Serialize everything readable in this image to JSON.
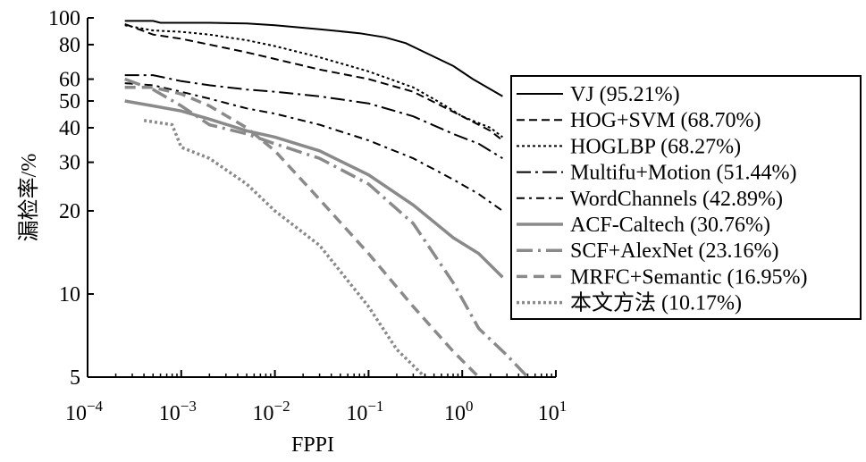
{
  "chart_data": {
    "type": "line",
    "title": "",
    "xlabel": "FPPI",
    "ylabel": "漏检率/%",
    "x_scale": "log",
    "y_scale": "log",
    "xlim": [
      0.0001,
      10
    ],
    "ylim": [
      5,
      100
    ],
    "x_ticks": [
      {
        "value": 0.0001,
        "base": "10",
        "exp": "−4"
      },
      {
        "value": 0.001,
        "base": "10",
        "exp": "−3"
      },
      {
        "value": 0.01,
        "base": "10",
        "exp": "−2"
      },
      {
        "value": 0.1,
        "base": "10",
        "exp": "−1"
      },
      {
        "value": 1,
        "base": "10",
        "exp": "0"
      },
      {
        "value": 10,
        "base": "10",
        "exp": "1"
      }
    ],
    "y_ticks": [
      {
        "value": 5,
        "label": "5"
      },
      {
        "value": 10,
        "label": "10"
      },
      {
        "value": 20,
        "label": "20"
      },
      {
        "value": 30,
        "label": "30"
      },
      {
        "value": 40,
        "label": "40"
      },
      {
        "value": 50,
        "label": "50"
      },
      {
        "value": 60,
        "label": "60"
      },
      {
        "value": 80,
        "label": "80"
      },
      {
        "value": 100,
        "label": "100"
      }
    ],
    "grid": false,
    "legend_position": "right",
    "series": [
      {
        "name": "VJ (95.21%)",
        "color": "#000000",
        "width": 2,
        "dash": "",
        "x": [
          0.00025,
          0.0005,
          0.0006,
          0.001,
          0.002,
          0.005,
          0.01,
          0.03,
          0.08,
          0.15,
          0.25,
          0.4,
          0.8,
          1.3,
          2.7
        ],
        "y": [
          97.5,
          97.5,
          96,
          96,
          96,
          95.5,
          94,
          91,
          88,
          85,
          81,
          75,
          67,
          60,
          52
        ]
      },
      {
        "name": "HOG+SVM (68.70%)",
        "color": "#000000",
        "width": 2,
        "dash": "9,5",
        "x": [
          0.00025,
          0.0005,
          0.001,
          0.002,
          0.005,
          0.01,
          0.03,
          0.1,
          0.3,
          0.6,
          1,
          2,
          2.7
        ],
        "y": [
          95,
          87,
          84,
          80,
          75,
          71,
          65,
          60,
          54,
          48,
          44,
          39,
          36
        ]
      },
      {
        "name": "HOGLBP (68.27%)",
        "color": "#000000",
        "width": 2,
        "dash": "3,3",
        "x": [
          0.00025,
          0.0005,
          0.001,
          0.002,
          0.005,
          0.01,
          0.03,
          0.1,
          0.3,
          0.6,
          1,
          2,
          2.7
        ],
        "y": [
          94,
          90,
          89,
          87,
          83,
          79,
          72,
          64,
          56,
          49,
          44,
          40,
          37
        ]
      },
      {
        "name": "Multifu+Motion (51.44%)",
        "color": "#000000",
        "width": 2,
        "dash": "16,5,3,5",
        "x": [
          0.00025,
          0.0005,
          0.001,
          0.002,
          0.005,
          0.01,
          0.03,
          0.1,
          0.3,
          0.8,
          1.5,
          2.7
        ],
        "y": [
          62,
          62,
          59,
          57,
          55,
          54,
          52,
          49,
          44,
          38,
          35,
          31
        ]
      },
      {
        "name": "WordChannels (42.89%)",
        "color": "#000000",
        "width": 2,
        "dash": "9,5,3,5",
        "x": [
          0.00025,
          0.0005,
          0.001,
          0.002,
          0.005,
          0.01,
          0.03,
          0.1,
          0.3,
          0.8,
          1.5,
          2.7
        ],
        "y": [
          58,
          57,
          54,
          51,
          47,
          45,
          41,
          36,
          31,
          26,
          23,
          20
        ]
      },
      {
        "name": "ACF-Caltech (30.76%)",
        "color": "#8a8a8a",
        "width": 3.5,
        "dash": "",
        "x": [
          0.00025,
          0.0005,
          0.001,
          0.002,
          0.005,
          0.01,
          0.03,
          0.1,
          0.3,
          0.8,
          1.5,
          2.7
        ],
        "y": [
          50,
          48,
          46,
          43,
          39,
          37,
          33,
          27,
          21,
          16,
          14,
          11.5
        ]
      },
      {
        "name": "SCF+AlexNet (23.16%)",
        "color": "#8a8a8a",
        "width": 3.5,
        "dash": "18,6,3,6",
        "x": [
          0.00025,
          0.0005,
          0.001,
          0.002,
          0.005,
          0.01,
          0.03,
          0.1,
          0.3,
          0.8,
          1.5,
          3,
          5
        ],
        "y": [
          60,
          55,
          48,
          41,
          38,
          35,
          31,
          25,
          18,
          11,
          7.5,
          6,
          5
        ]
      },
      {
        "name": "MRFC+Semantic (16.95%)",
        "color": "#8a8a8a",
        "width": 3.5,
        "dash": "12,7",
        "x": [
          0.00025,
          0.0005,
          0.001,
          0.002,
          0.005,
          0.01,
          0.03,
          0.1,
          0.3,
          0.8,
          1.5
        ],
        "y": [
          56,
          56,
          53,
          48,
          40,
          33,
          22,
          14,
          9,
          6.2,
          5
        ]
      },
      {
        "name": "本文方法 (10.17%)",
        "color": "#8a8a8a",
        "width": 3.5,
        "dash": "3,3",
        "x": [
          0.0004,
          0.0008,
          0.001,
          0.002,
          0.005,
          0.01,
          0.03,
          0.1,
          0.2,
          0.4
        ],
        "y": [
          42.5,
          41,
          34,
          31,
          25,
          20,
          15,
          9,
          6.3,
          5
        ]
      }
    ]
  }
}
